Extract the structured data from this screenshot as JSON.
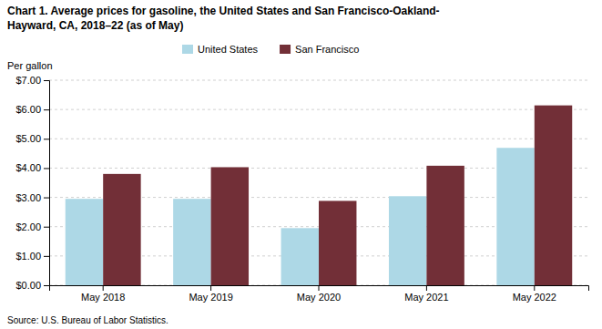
{
  "chart_data": {
    "type": "bar",
    "title": "Chart 1. Average prices for gasoline, the United States and San Francisco-Oakland-",
    "subtitle": "Hayward, CA, 2018–22 (as of May)",
    "ylabel": "Per gallon",
    "source": "Source: U.S. Bureau of Labor Statistics.",
    "categories": [
      "May 2018",
      "May 2019",
      "May 2020",
      "May 2021",
      "May 2022"
    ],
    "series": [
      {
        "name": "United States",
        "color": "#ADD8E6",
        "values": [
          2.95,
          2.95,
          1.95,
          3.04,
          4.69
        ]
      },
      {
        "name": "San Francisco",
        "color": "#722F37",
        "values": [
          3.8,
          4.03,
          2.88,
          4.08,
          6.14
        ]
      }
    ],
    "ylim": [
      0,
      7.0
    ],
    "yticks": [
      {
        "value": 0.0,
        "label": "$0.00"
      },
      {
        "value": 1.0,
        "label": "$1.00"
      },
      {
        "value": 2.0,
        "label": "$2.00"
      },
      {
        "value": 3.0,
        "label": "$3.00"
      },
      {
        "value": 4.0,
        "label": "$4.00"
      },
      {
        "value": 5.0,
        "label": "$5.00"
      },
      {
        "value": 6.0,
        "label": "$6.00"
      },
      {
        "value": 7.0,
        "label": "$7.00"
      }
    ],
    "grid": true,
    "legend": "top"
  }
}
